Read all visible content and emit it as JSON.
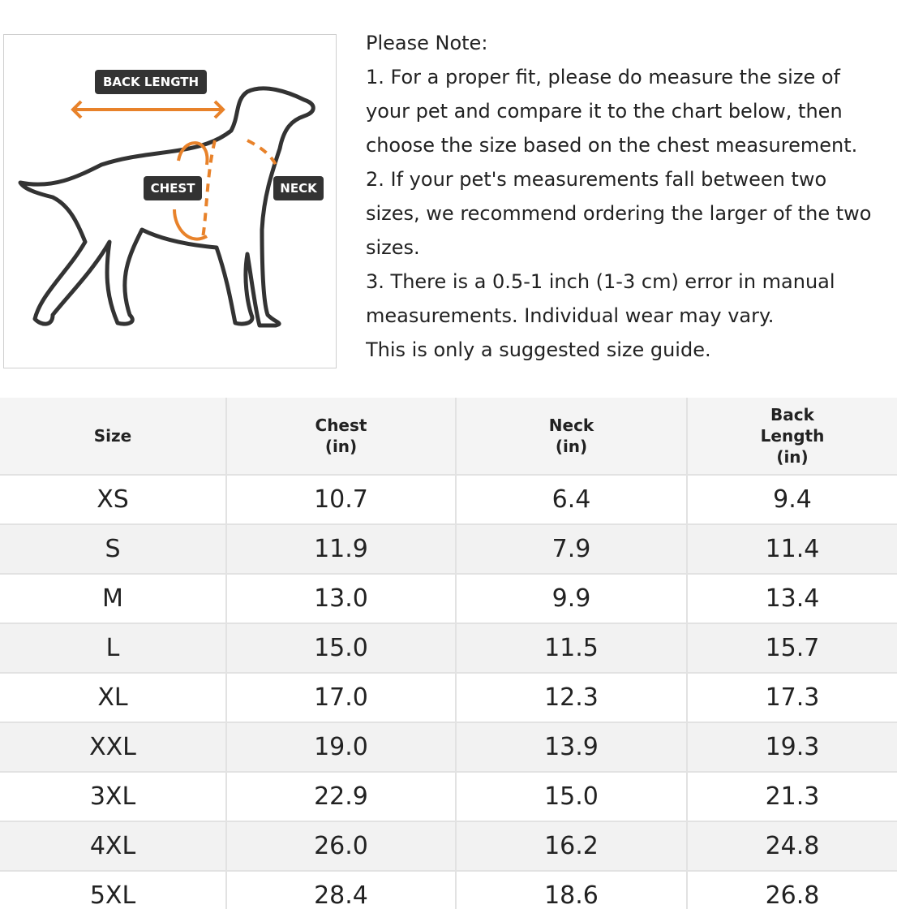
{
  "diagram": {
    "labels": {
      "back_length": "BACK LENGTH",
      "chest": "CHEST",
      "neck": "NECK"
    }
  },
  "note": {
    "lines": [
      "Please Note:",
      "1. For a proper fit, please do measure the size of",
      "your pet and compare it to the chart below, then",
      "choose the size based on the chest measurement.",
      "2. If your pet's measurements fall between two",
      "sizes, we recommend ordering the larger of the two",
      "sizes.",
      "3. There is a 0.5-1 inch (1-3 cm) error in manual",
      "measurements. Individual wear may vary.",
      "This is only a suggested size guide."
    ]
  },
  "table": {
    "header": [
      [
        "Size"
      ],
      [
        "Chest",
        "(in)"
      ],
      [
        "Neck",
        "(in)"
      ],
      [
        "Back",
        "Length",
        "(in)"
      ]
    ],
    "rows": [
      [
        "XS",
        "10.7",
        "6.4",
        "9.4"
      ],
      [
        "S",
        "11.9",
        "7.9",
        "11.4"
      ],
      [
        "M",
        "13.0",
        "9.9",
        "13.4"
      ],
      [
        "L",
        "15.0",
        "11.5",
        "15.7"
      ],
      [
        "XL",
        "17.0",
        "12.3",
        "17.3"
      ],
      [
        "XXL",
        "19.0",
        "13.9",
        "19.3"
      ],
      [
        "3XL",
        "22.9",
        "15.0",
        "21.3"
      ],
      [
        "4XL",
        "26.0",
        "16.2",
        "24.8"
      ],
      [
        "5XL",
        "28.4",
        "18.6",
        "26.8"
      ]
    ]
  }
}
